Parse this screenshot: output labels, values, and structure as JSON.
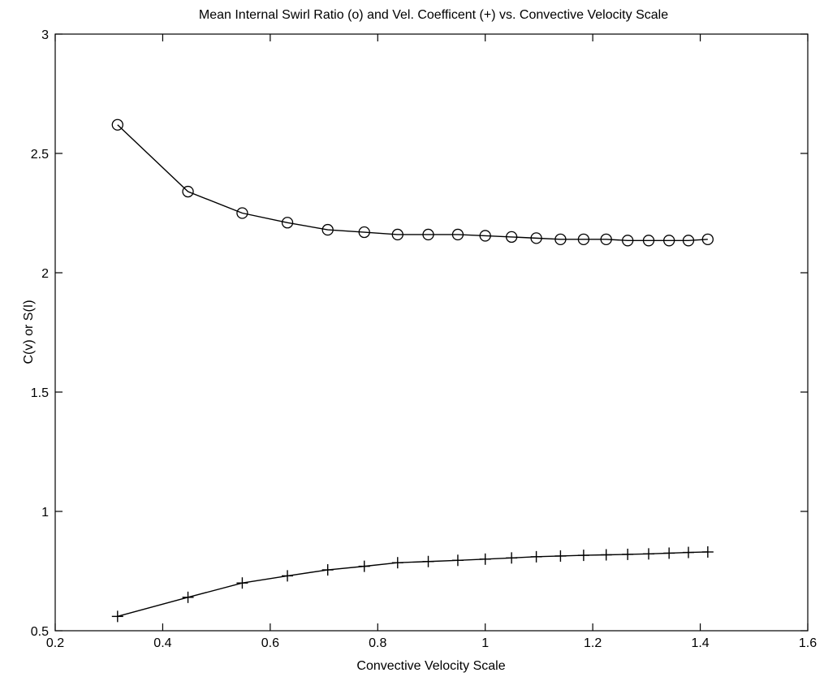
{
  "chart_data": {
    "type": "line",
    "title": "Mean Internal Swirl Ratio (o) and Vel. Coefficent (+) vs. Convective Velocity Scale",
    "xlabel": "Convective Velocity Scale",
    "ylabel": "C(v) or S(I)",
    "xlim": [
      0.2,
      1.6
    ],
    "ylim": [
      0.5,
      3
    ],
    "xticks": [
      "0.2",
      "0.4",
      "0.6",
      "0.8",
      "1",
      "1.2",
      "1.4",
      "1.6"
    ],
    "yticks": [
      "0.5",
      "1",
      "1.5",
      "2",
      "2.5",
      "3"
    ],
    "grid": false,
    "legend": "none",
    "line_color": "#000000",
    "series": [
      {
        "marker": "circle",
        "x": [
          0.316,
          0.447,
          0.548,
          0.632,
          0.707,
          0.775,
          0.837,
          0.894,
          0.949,
          1.0,
          1.049,
          1.095,
          1.14,
          1.183,
          1.225,
          1.265,
          1.304,
          1.342,
          1.378,
          1.414
        ],
        "values": [
          2.62,
          2.34,
          2.25,
          2.21,
          2.18,
          2.17,
          2.16,
          2.16,
          2.16,
          2.155,
          2.15,
          2.145,
          2.14,
          2.14,
          2.14,
          2.135,
          2.135,
          2.135,
          2.135,
          2.14
        ]
      },
      {
        "marker": "plus",
        "x": [
          0.316,
          0.447,
          0.548,
          0.632,
          0.707,
          0.775,
          0.837,
          0.894,
          0.949,
          1.0,
          1.049,
          1.095,
          1.14,
          1.183,
          1.225,
          1.265,
          1.304,
          1.342,
          1.378,
          1.414
        ],
        "values": [
          0.56,
          0.64,
          0.7,
          0.73,
          0.755,
          0.77,
          0.785,
          0.79,
          0.795,
          0.8,
          0.805,
          0.81,
          0.813,
          0.816,
          0.818,
          0.82,
          0.822,
          0.825,
          0.828,
          0.83
        ]
      }
    ]
  }
}
